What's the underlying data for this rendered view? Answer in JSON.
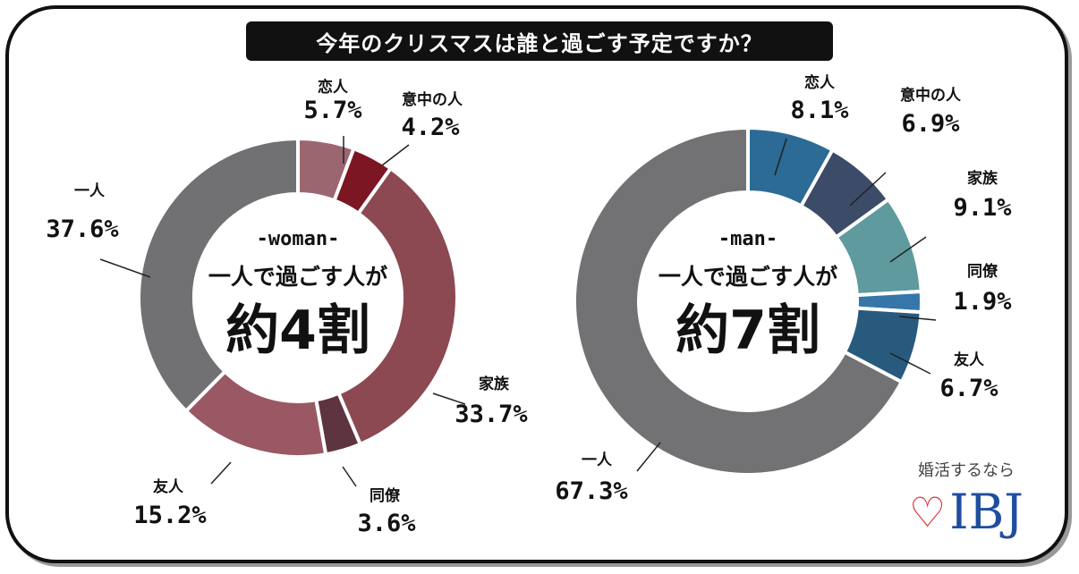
{
  "title": "今年のクリスマスは誰と過ごす予定ですか？",
  "chart_data": [
    {
      "type": "pie",
      "center_label": "-woman-",
      "center_text": "一人で過ごす人が",
      "center_big": "約4割",
      "slices": [
        {
          "label": "恋人",
          "value": 5.7,
          "display": "5.7%",
          "color": "#9c6670"
        },
        {
          "label": "意中の人",
          "value": 4.2,
          "display": "4.2%",
          "color": "#7c1622"
        },
        {
          "label": "家族",
          "value": 33.7,
          "display": "33.7%",
          "color": "#8c4952"
        },
        {
          "label": "同僚",
          "value": 3.6,
          "display": "3.6%",
          "color": "#5e3440"
        },
        {
          "label": "友人",
          "value": 15.2,
          "display": "15.2%",
          "color": "#995864"
        },
        {
          "label": "一人",
          "value": 37.6,
          "display": "37.6%",
          "color": "#717072"
        }
      ]
    },
    {
      "type": "pie",
      "center_label": "-man-",
      "center_text": "一人で過ごす人が",
      "center_big": "約7割",
      "slices": [
        {
          "label": "恋人",
          "value": 8.1,
          "display": "8.1%",
          "color": "#2b6b96"
        },
        {
          "label": "意中の人",
          "value": 6.9,
          "display": "6.9%",
          "color": "#3b4b68"
        },
        {
          "label": "家族",
          "value": 9.1,
          "display": "9.1%",
          "color": "#5f9b9e"
        },
        {
          "label": "同僚",
          "value": 1.9,
          "display": "1.9%",
          "color": "#3776a8"
        },
        {
          "label": "友人",
          "value": 6.7,
          "display": "6.7%",
          "color": "#285a7e"
        },
        {
          "label": "一人",
          "value": 67.3,
          "display": "67.3%",
          "color": "#727173"
        }
      ]
    }
  ],
  "logo": {
    "tagline": "婚活するなら",
    "heart_icon": "heart-outline-icon",
    "brand": "IBJ",
    "heart_color": "#d9303a",
    "brand_color": "#1f4e9e"
  }
}
